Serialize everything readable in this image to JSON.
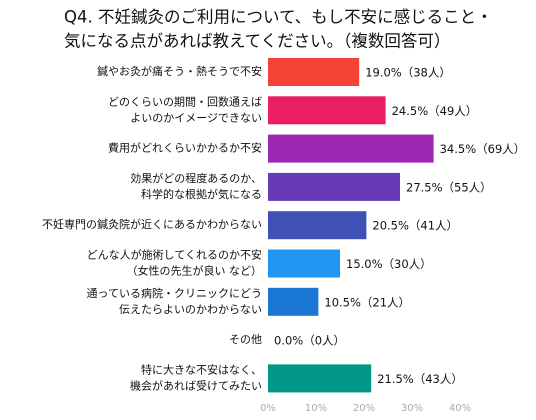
{
  "chart_data": {
    "type": "barh",
    "title": [
      "Q4. 不妊鍼灸のご利用について、もし不安に感じること・",
      "気になる点があれば教えてください。（複数回答可）"
    ],
    "categories": [
      [
        "鍼やお灸が痛そう・熱そうで不安"
      ],
      [
        "どのくらいの期間・回数通えば",
        "よいのかイメージできない"
      ],
      [
        "費用がどれくらいかかるか不安"
      ],
      [
        "効果がどの程度あるのか、",
        "科学的な根拠が気になる"
      ],
      [
        "不妊専門の鍼灸院が近くにあるかわからない"
      ],
      [
        "どんな人が施術してくれるのか不安",
        "（女性の先生が良い など）"
      ],
      [
        "通っている病院・クリニックにどう",
        "伝えたらよいのかわからない"
      ],
      [
        "その他"
      ],
      [
        "特に大きな不安はなく、",
        "機会があれば受けてみたい"
      ]
    ],
    "values": [
      19.0,
      24.5,
      34.5,
      27.5,
      20.5,
      15.0,
      10.5,
      0.0,
      21.5
    ],
    "value_labels": [
      "19.0%（38人）",
      "24.5%（49人）",
      "34.5%（69人）",
      "27.5%（55人）",
      "20.5%（41人）",
      "15.0%（30人）",
      "10.5%（21人）",
      "0.0%（0人）",
      "21.5%（43人）"
    ],
    "colors": [
      "#f44336",
      "#e91e63",
      "#9c27b0",
      "#673ab7",
      "#3f51b5",
      "#2196f3",
      "#1976d2",
      "#009688",
      "#009688"
    ],
    "xlim": [
      0,
      40
    ],
    "xticks": [
      {
        "value": 0,
        "label": "0%"
      },
      {
        "value": 10,
        "label": "10%"
      },
      {
        "value": 20,
        "label": "20%"
      },
      {
        "value": 30,
        "label": "30%"
      },
      {
        "value": 40,
        "label": "40%"
      }
    ],
    "grid": false
  }
}
